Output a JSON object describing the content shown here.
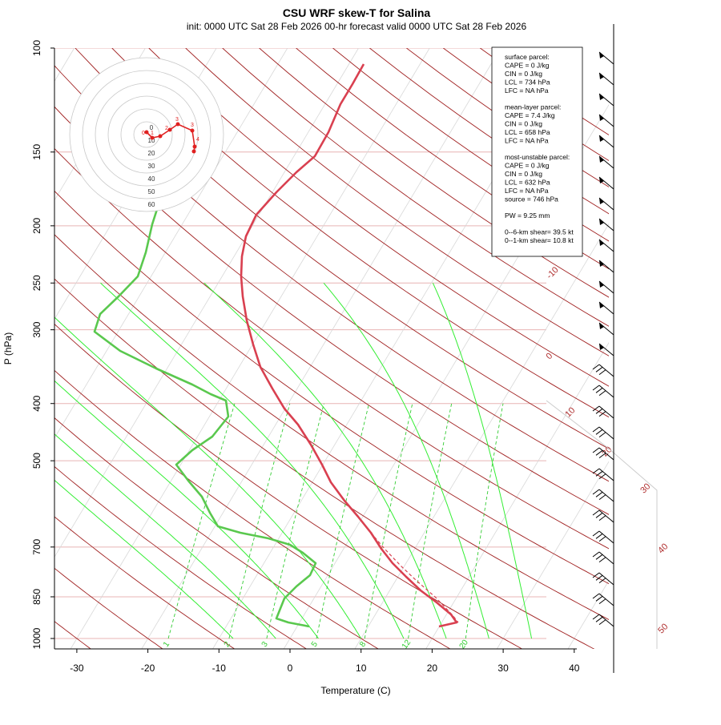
{
  "title": "CSU WRF skew-T for Salina",
  "subtitle": "init: 0000 UTC Sat 28 Feb 2026    00-hr forecast valid 0000 UTC Sat 28 Feb 2026",
  "xlabel": "Temperature (C)",
  "ylabel": "P (hPa)",
  "info_box": [
    {
      "header": "surface parcel:",
      "lines": [
        "CAPE = 0 J/kg",
        "CIN = 0 J/kg",
        "LCL = 734 hPa",
        "LFC = NA hPa"
      ]
    },
    {
      "header": "mean-layer parcel:",
      "lines": [
        "CAPE = 7.4 J/kg",
        "CIN = 0 J/kg",
        "LCL = 658 hPa",
        "LFC = NA hPa"
      ]
    },
    {
      "header": "most-unstable parcel:",
      "lines": [
        "CAPE = 0 J/kg",
        "CIN = 0 J/kg",
        "LCL = 632 hPa",
        "LFC = NA hPa",
        "source = 746 hPa"
      ]
    },
    {
      "header": "",
      "lines": [
        "PW =  9.25 mm"
      ]
    },
    {
      "header": "",
      "lines": [
        "0--6-km shear= 39.5 kt",
        "0--1-km shear= 10.8 kt"
      ]
    }
  ],
  "chart_data": {
    "type": "skew-t",
    "x_ticks": [
      -30,
      -20,
      -10,
      0,
      10,
      20,
      30,
      40
    ],
    "x_tick_labels": [
      "-30",
      "-20",
      "-10",
      "0",
      "10",
      "20",
      "30",
      "40"
    ],
    "y_ticks": [
      100,
      150,
      200,
      250,
      300,
      400,
      500,
      700,
      850,
      1000
    ],
    "y_tick_labels": [
      "100",
      "150",
      "200",
      "250",
      "300",
      "400",
      "500",
      "700",
      "850",
      "1000"
    ],
    "xlim": [
      -33,
      45
    ],
    "ylim_hpa": [
      1000,
      100
    ],
    "isotherm_labels": [
      "-10",
      "0",
      "10",
      "20",
      "30",
      "40",
      "50"
    ],
    "isotherm_label_values": [
      -10,
      0,
      10,
      20,
      30,
      40,
      50
    ],
    "mixing_ratio_labels": [
      "1",
      "2",
      "3",
      "5",
      "8",
      "12",
      "20"
    ],
    "temperature_color": "#d94050",
    "dewpoint_color": "#5ac84e",
    "dry_adiabat_color": "#a02020",
    "moist_adiabat_color": "#33ee33",
    "mixing_ratio_color": "#33cc33",
    "hodograph_ring_labels": [
      "0",
      "10",
      "20",
      "30",
      "40",
      "50",
      "60"
    ],
    "hodograph_point_labels": [
      "0",
      "1",
      "2",
      "3",
      "4"
    ]
  }
}
